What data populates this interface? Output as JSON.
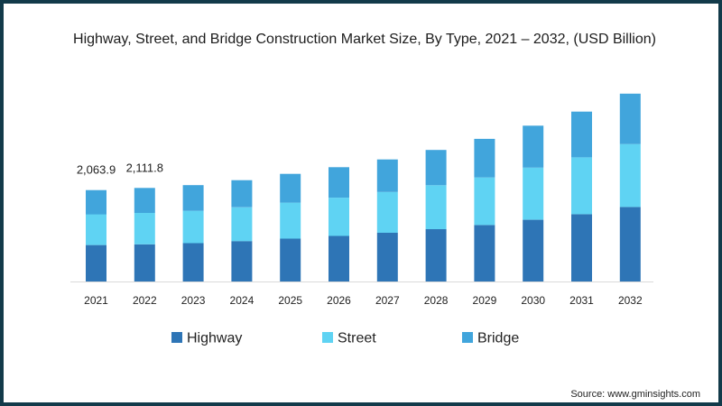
{
  "chart_data": {
    "type": "bar",
    "stacked": true,
    "title": "Highway, Street, and Bridge Construction Market Size, By Type, 2021 – 2032, (USD Billion)",
    "source": "Source: www.gminsights.com",
    "categories": [
      "2021",
      "2022",
      "2023",
      "2024",
      "2025",
      "2026",
      "2027",
      "2028",
      "2029",
      "2030",
      "2031",
      "2032"
    ],
    "series": [
      {
        "name": "Highway",
        "color": "#2e75b6",
        "values": [
          822,
          840,
          867,
          912,
          968,
          1028,
          1099,
          1181,
          1276,
          1394,
          1519,
          1683
        ]
      },
      {
        "name": "Street",
        "color": "#5fd3f3",
        "values": [
          695,
          708,
          729,
          763,
          812,
          864,
          921,
          993,
          1073,
          1176,
          1283,
          1419
        ]
      },
      {
        "name": "Bridge",
        "color": "#41a5dc",
        "values": [
          547,
          564,
          580,
          612,
          650,
          688,
          736,
          797,
          871,
          947,
          1033,
          1139
        ]
      }
    ],
    "data_labels": [
      {
        "category": "2021",
        "text": "2,063.9"
      },
      {
        "category": "2022",
        "text": "2,111.8"
      }
    ],
    "xlabel": "",
    "ylabel": "",
    "ylim": [
      0,
      4400
    ],
    "legend_position": "bottom",
    "grid": false
  }
}
